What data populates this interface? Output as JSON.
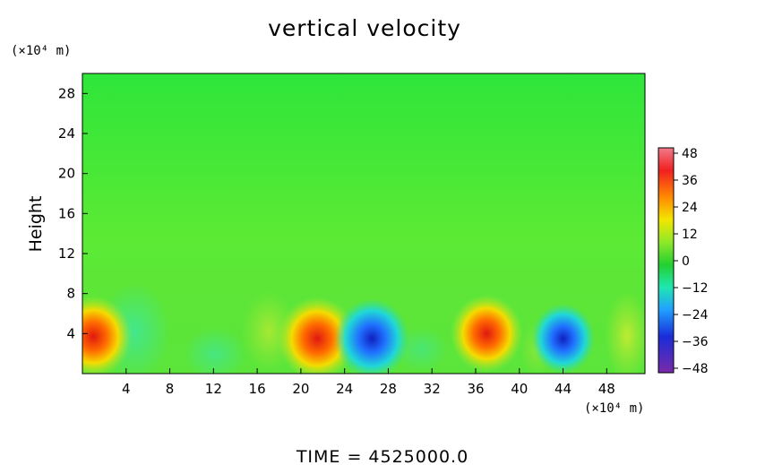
{
  "chart_data": {
    "type": "heatmap",
    "title": "vertical velocity",
    "ylabel": "Height",
    "x_unit": "(×10⁴ m)",
    "y_unit": "(×10⁴ m)",
    "xlim": [
      0,
      51.5
    ],
    "ylim": [
      0,
      30
    ],
    "x_ticks": [
      "4",
      "8",
      "12",
      "16",
      "20",
      "24",
      "28",
      "32",
      "36",
      "40",
      "44",
      "48"
    ],
    "y_ticks": [
      "4",
      "8",
      "12",
      "16",
      "20",
      "24",
      "28"
    ],
    "colorbar": {
      "range": [
        -48,
        48
      ],
      "ticks": [
        "48",
        "36",
        "24",
        "12",
        "0",
        "−12",
        "−24",
        "−36",
        "−48"
      ]
    },
    "features": [
      {
        "x": 1,
        "y": 3.7,
        "value": 40
      },
      {
        "x": 21.5,
        "y": 3.5,
        "value": 42
      },
      {
        "x": 26.5,
        "y": 3.5,
        "value": -38
      },
      {
        "x": 37,
        "y": 4,
        "value": 36
      },
      {
        "x": 44,
        "y": 3.5,
        "value": -28
      }
    ],
    "footer": "TIME  =  4525000.0"
  }
}
